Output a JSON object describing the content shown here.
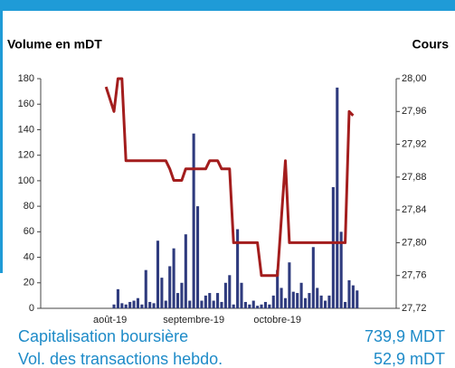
{
  "chart_data": {
    "type": "bar_line",
    "y_label": "Volume en mDT",
    "y2_label": "Cours",
    "categories": [
      null,
      "août-19",
      null,
      null,
      null,
      null,
      null,
      null,
      null,
      null,
      null,
      null,
      null,
      null,
      null,
      null,
      null,
      null,
      null,
      null,
      null,
      null,
      "septembre-19",
      null,
      null,
      null,
      null,
      null,
      null,
      null,
      null,
      null,
      null,
      null,
      null,
      null,
      null,
      null,
      null,
      null,
      null,
      null,
      null,
      "octobre-19",
      null,
      null,
      null,
      null,
      null,
      null,
      null,
      null,
      null,
      null,
      null,
      null,
      null,
      null,
      null,
      null,
      null,
      null,
      null,
      null
    ],
    "series": [
      {
        "color": "#2f3b7e",
        "values": [
          0,
          0,
          3,
          15,
          4,
          3,
          5,
          6,
          8,
          3,
          30,
          5,
          4,
          53,
          24,
          6,
          33,
          47,
          12,
          20,
          58,
          6,
          137,
          80,
          6,
          10,
          12,
          6,
          12,
          5,
          20,
          26,
          3,
          62,
          20,
          5,
          3,
          6,
          2,
          3,
          5,
          3,
          10,
          30,
          16,
          8,
          36,
          13,
          12,
          20,
          8,
          12,
          48,
          16,
          10,
          6,
          10,
          95,
          173,
          60,
          5,
          22,
          18,
          14
        ]
      },
      {
        "color": "#a31d1d",
        "axis": "y2",
        "values": [
          27.99,
          27.975,
          27.96,
          28.0,
          28.0,
          27.9,
          27.9,
          27.9,
          27.9,
          27.9,
          27.9,
          27.9,
          27.9,
          27.9,
          27.9,
          27.9,
          27.89,
          27.876,
          27.876,
          27.876,
          27.89,
          27.89,
          27.89,
          27.89,
          27.89,
          27.89,
          27.9,
          27.9,
          27.9,
          27.89,
          27.89,
          27.89,
          27.8,
          27.8,
          27.8,
          27.8,
          27.8,
          27.8,
          27.8,
          27.76,
          27.76,
          27.76,
          27.76,
          27.76,
          27.83,
          27.9,
          27.8,
          27.8,
          27.8,
          27.8,
          27.8,
          27.8,
          27.8,
          27.8,
          27.8,
          27.8,
          27.8,
          27.8,
          27.8,
          27.8,
          27.8,
          27.96,
          27.955,
          null
        ]
      }
    ],
    "ylim": [
      0,
      180
    ],
    "yticks": [
      0,
      20,
      40,
      60,
      80,
      100,
      120,
      140,
      160,
      180
    ],
    "y2lim": [
      27.72,
      28.0
    ],
    "y2ticks": [
      {
        "value": 27.72,
        "label": "27,72"
      },
      {
        "value": 27.76,
        "label": "27,76"
      },
      {
        "value": 27.8,
        "label": "27,80"
      },
      {
        "value": 27.84,
        "label": "27,84"
      },
      {
        "value": 27.88,
        "label": "27,88"
      },
      {
        "value": 27.92,
        "label": "27,92"
      },
      {
        "value": 27.96,
        "label": "27,96"
      },
      {
        "value": 28.0,
        "label": "28,00"
      }
    ]
  },
  "summary": [
    {
      "label": "Capitalisation boursière",
      "value": "739,9 MDT"
    },
    {
      "label": "Vol. des transactions hebdo.",
      "value": "52,9 mDT"
    }
  ]
}
